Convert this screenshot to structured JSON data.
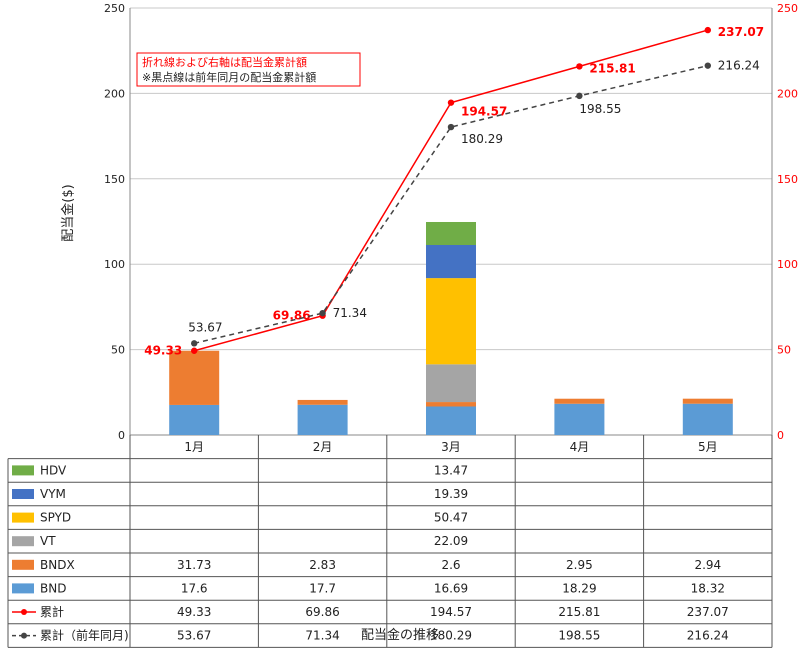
{
  "chart_data": {
    "type": "bar",
    "title": "配当金の推移",
    "ylabel": "配当金($)",
    "ylim": [
      0,
      250
    ],
    "y2lim": [
      0,
      250
    ],
    "yticks": [
      0,
      50,
      100,
      150,
      200,
      250
    ],
    "categories": [
      "1月",
      "2月",
      "3月",
      "4月",
      "5月"
    ],
    "stacked_series": [
      {
        "name": "BND",
        "color": "#5b9bd5",
        "values": [
          17.6,
          17.7,
          16.69,
          18.29,
          18.32
        ]
      },
      {
        "name": "BNDX",
        "color": "#ed7d31",
        "values": [
          31.73,
          2.83,
          2.6,
          2.95,
          2.94
        ]
      },
      {
        "name": "VT",
        "color": "#a5a5a5",
        "values": [
          null,
          null,
          22.09,
          null,
          null
        ]
      },
      {
        "name": "SPYD",
        "color": "#ffc000",
        "values": [
          null,
          null,
          50.47,
          null,
          null
        ]
      },
      {
        "name": "VYM",
        "color": "#4472c4",
        "values": [
          null,
          null,
          19.39,
          null,
          null
        ]
      },
      {
        "name": "HDV",
        "color": "#70ad47",
        "values": [
          null,
          null,
          13.47,
          null,
          null
        ]
      }
    ],
    "line_series": [
      {
        "name": "累計",
        "color": "#ff0000",
        "style": "solid",
        "axis": "right",
        "values": [
          49.33,
          69.86,
          194.57,
          215.81,
          237.07
        ]
      },
      {
        "name": "累計（前年同月)",
        "color": "#444444",
        "style": "dashed",
        "axis": "right",
        "values": [
          53.67,
          71.34,
          180.29,
          198.55,
          216.24
        ]
      }
    ],
    "table_rows_order": [
      "HDV",
      "VYM",
      "SPYD",
      "VT",
      "BNDX",
      "BND",
      "累計",
      "累計（前年同月)"
    ],
    "annotation": [
      "折れ線および右軸は配当金累計額",
      "※黒点線は前年同月の配当金累計額"
    ],
    "grid": true,
    "legend": "data-table"
  }
}
